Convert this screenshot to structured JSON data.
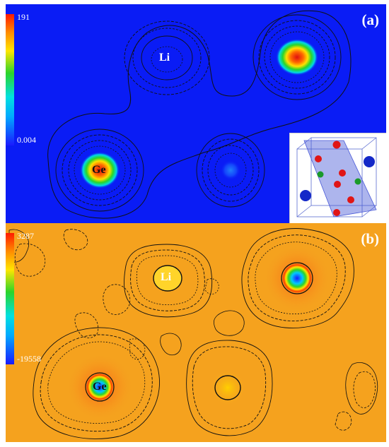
{
  "panel_a": {
    "tag": "(a)",
    "colorbar": {
      "max": "191",
      "min": "0.004"
    },
    "atom_labels": {
      "li": "Li",
      "ge": "Ge"
    },
    "background_color": "#0a1cf5"
  },
  "panel_b": {
    "tag": "(b)",
    "colorbar": {
      "max": "3287",
      "min": "-19558"
    },
    "atom_labels": {
      "li": "Li",
      "ge": "Ge"
    },
    "background_color": "#f5a21e"
  },
  "inset": {
    "description_icon": "crystal-unit-cell-icon",
    "atom_colors": {
      "red": "#e01515",
      "blue": "#1428c8",
      "green": "#1a9a2a"
    }
  }
}
